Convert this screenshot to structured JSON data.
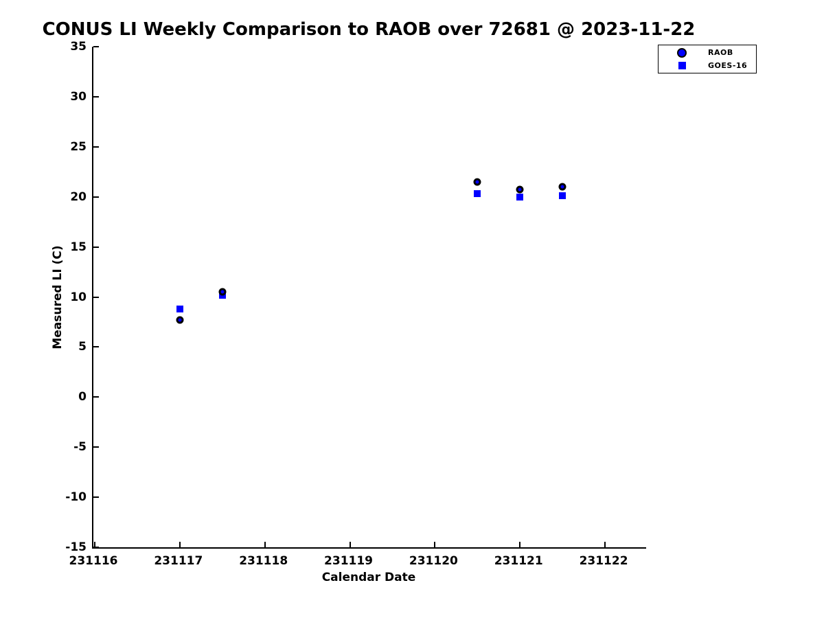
{
  "figure": {
    "background": "#FFFFFF",
    "axis_color": "#000000",
    "blue": "#0000FF",
    "black": "#000000"
  },
  "chart_data": {
    "type": "scatter",
    "title": "CONUS LI Weekly Comparison to RAOB over 72681 @ 2023-11-22",
    "xlabel": "Calendar Date",
    "ylabel": "Measured LI (C)",
    "xlim": [
      231116,
      231122.5
    ],
    "ylim": [
      -15,
      35
    ],
    "xticks": [
      231116,
      231117,
      231118,
      231119,
      231120,
      231121,
      231122
    ],
    "yticks": [
      35,
      30,
      25,
      20,
      15,
      10,
      5,
      0,
      -5,
      -10,
      -15
    ],
    "grid": false,
    "legend_position": "top-right",
    "series": [
      {
        "name": "RAOB",
        "marker": "circle",
        "face_color": "#0000FF",
        "edge_color": "#000000",
        "points": [
          [
            231117,
            7.7
          ],
          [
            231117.5,
            10.5
          ],
          [
            231120.5,
            21.5
          ],
          [
            231121,
            20.7
          ],
          [
            231121.5,
            21.0
          ]
        ]
      },
      {
        "name": "GOES-16",
        "marker": "square",
        "face_color": "#0000FF",
        "edge_color": "#0000FF",
        "points": [
          [
            231117,
            8.8
          ],
          [
            231117.5,
            10.2
          ],
          [
            231120.5,
            20.3
          ],
          [
            231121,
            20.0
          ],
          [
            231121.5,
            20.1
          ]
        ]
      }
    ]
  }
}
